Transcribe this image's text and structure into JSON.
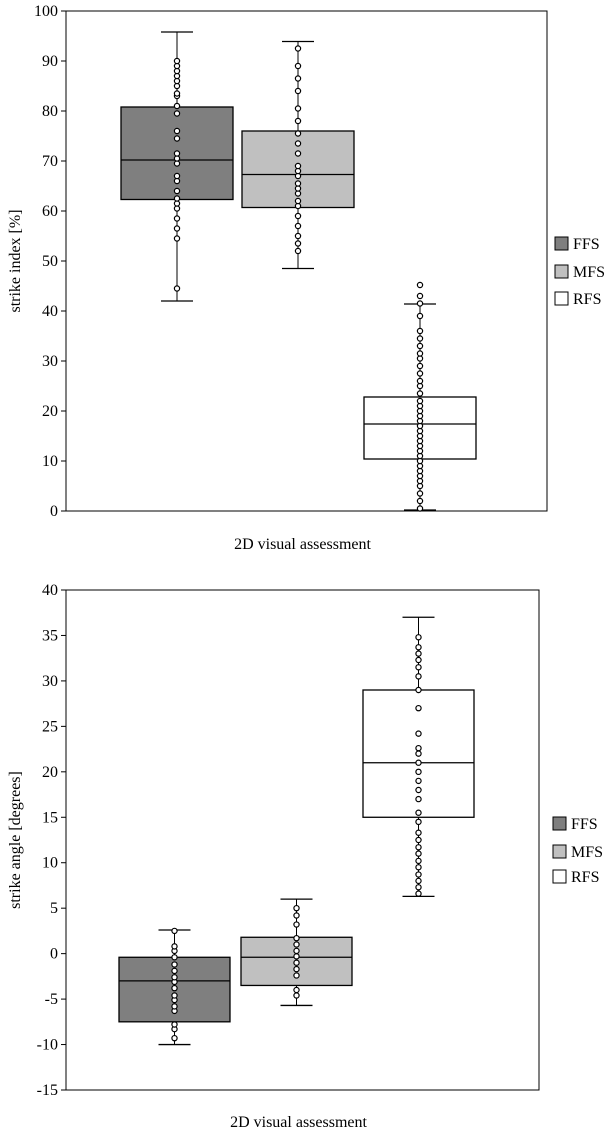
{
  "chart_data": [
    {
      "type": "boxplot",
      "ylabel": "strike index [%]",
      "xlabel": "2D visual assessment",
      "ylim": [
        0,
        100
      ],
      "yticks": [
        "0",
        "10",
        "20",
        "30",
        "40",
        "50",
        "60",
        "70",
        "80",
        "90",
        "100"
      ],
      "grid": false,
      "legend_position": "right",
      "legend": [
        {
          "label": "FFS",
          "color": "#7f7f7f"
        },
        {
          "label": "MFS",
          "color": "#c0c0c0"
        },
        {
          "label": "RFS",
          "color": "#ffffff"
        }
      ],
      "series": [
        {
          "name": "FFS",
          "whisker_low": 42,
          "q1": 62.3,
          "median": 70.2,
          "q3": 80.8,
          "whisker_high": 95.8,
          "points": [
            44.5,
            54.5,
            56.5,
            58.5,
            60.5,
            61.5,
            62.5,
            64,
            66,
            67,
            69.5,
            70.5,
            71.5,
            74.5,
            76,
            79.5,
            81,
            83,
            83.5,
            85,
            86,
            87,
            88,
            89,
            90
          ]
        },
        {
          "name": "MFS",
          "whisker_low": 48.5,
          "q1": 60.7,
          "median": 67.3,
          "q3": 76,
          "whisker_high": 93.9,
          "points": [
            52,
            53.5,
            55,
            57,
            59,
            61,
            62,
            63.5,
            64.5,
            65.5,
            67,
            68,
            69,
            71.5,
            73.5,
            75.5,
            78,
            80.5,
            84,
            86.5,
            89,
            92.5
          ]
        },
        {
          "name": "RFS",
          "whisker_low": 0.2,
          "q1": 10.4,
          "median": 17.4,
          "q3": 22.8,
          "whisker_high": 41.4,
          "points": [
            0.5,
            2,
            3.5,
            5,
            6,
            7,
            8,
            9,
            10,
            11,
            12,
            13,
            14,
            15,
            16,
            17,
            18,
            19,
            20,
            21,
            22,
            23.5,
            25,
            26,
            27.5,
            29,
            30.5,
            31.5,
            33,
            34.5,
            36,
            39,
            41.5,
            43,
            45.2
          ]
        }
      ]
    },
    {
      "type": "boxplot",
      "ylabel": "strike angle [degrees]",
      "xlabel": "2D visual assessment",
      "ylim": [
        -15,
        40
      ],
      "yticks": [
        "-15",
        "-10",
        "-5",
        "0",
        "5",
        "10",
        "15",
        "20",
        "25",
        "30",
        "35",
        "40"
      ],
      "grid": false,
      "legend_position": "right",
      "legend": [
        {
          "label": "FFS",
          "color": "#7f7f7f"
        },
        {
          "label": "MFS",
          "color": "#c0c0c0"
        },
        {
          "label": "RFS",
          "color": "#ffffff"
        }
      ],
      "series": [
        {
          "name": "FFS",
          "whisker_low": -10,
          "q1": -7.5,
          "median": -3,
          "q3": -0.4,
          "whisker_high": 2.6,
          "points": [
            -9.3,
            -8.3,
            -7.8,
            -6.3,
            -5.8,
            -5.1,
            -4.6,
            -3.8,
            -3.1,
            -2.6,
            -1.9,
            -1.2,
            -0.4,
            0.3,
            0.8,
            2.5
          ]
        },
        {
          "name": "MFS",
          "whisker_low": -5.7,
          "q1": -3.5,
          "median": -0.4,
          "q3": 1.8,
          "whisker_high": 6,
          "points": [
            -4.6,
            -4,
            -2.4,
            -1.7,
            -1,
            -0.3,
            0.3,
            1,
            1.7,
            3.2,
            4.2,
            5
          ]
        },
        {
          "name": "RFS",
          "whisker_low": 6.3,
          "q1": 15,
          "median": 21,
          "q3": 29,
          "whisker_high": 37,
          "points": [
            6.6,
            7.3,
            8,
            8.7,
            9.5,
            10.2,
            11,
            11.7,
            12.5,
            13.3,
            14.5,
            15.5,
            17,
            18,
            19,
            20,
            21,
            22,
            22.6,
            24.2,
            27,
            29,
            30.5,
            31.5,
            32.3,
            33,
            33.7,
            34.8
          ]
        }
      ]
    }
  ]
}
